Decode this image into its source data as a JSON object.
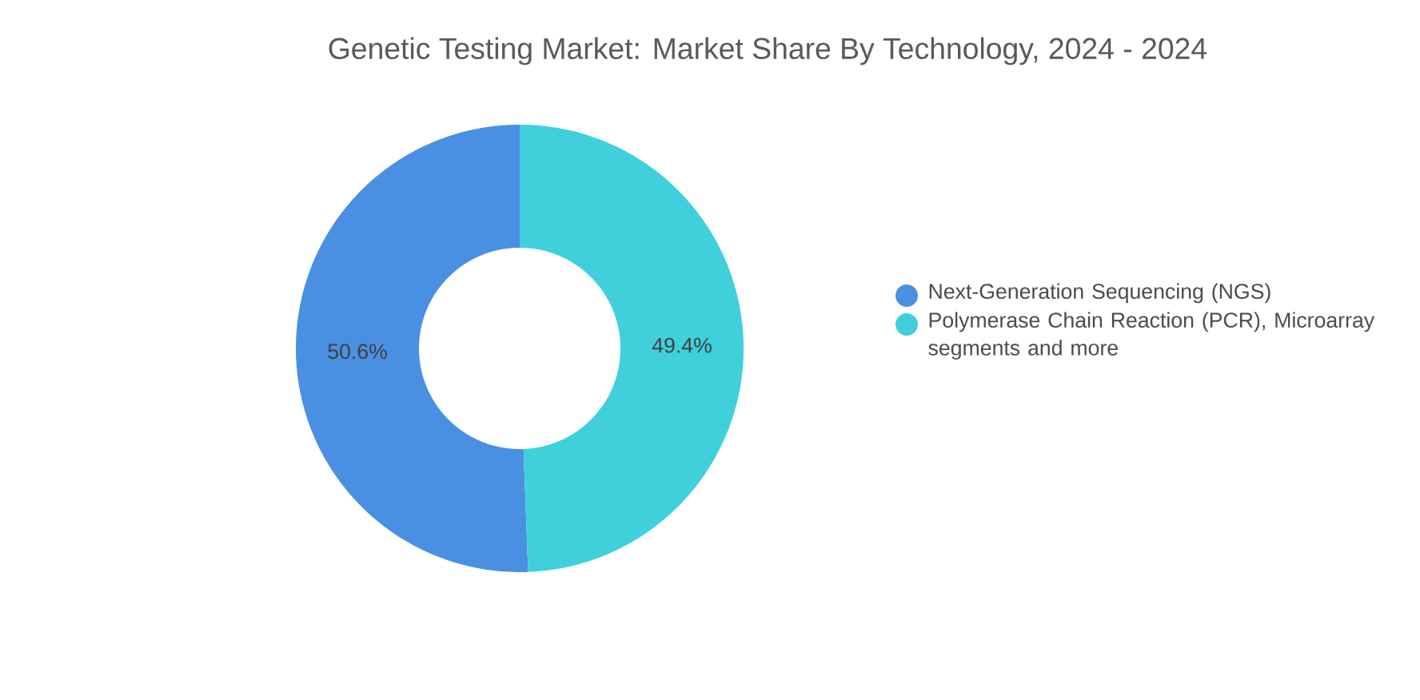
{
  "chart_data": {
    "type": "donut",
    "title": "Genetic Testing Market: Market Share By Technology, 2024 - 2024",
    "categories": [
      "Next-Generation Sequencing (NGS)",
      "Polymerase Chain Reaction (PCR), Microarray segments and more"
    ],
    "values": [
      50.6,
      49.4
    ],
    "colors": [
      "#4a90e2",
      "#3fd0db"
    ],
    "value_labels": [
      "50.6%",
      "49.4%"
    ],
    "legend": "right"
  }
}
